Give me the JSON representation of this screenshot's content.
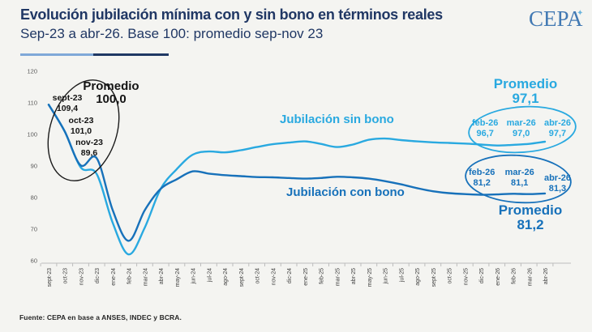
{
  "header": {
    "title": "Evolución jubilación mínima con y sin bono en términos reales",
    "subtitle": "Sep-23 a abr-26. Base 100: promedio sep-nov 23",
    "logo": "CEPA"
  },
  "source": "Fuente: CEPA en base a ANSES, INDEC y BCRA.",
  "colors": {
    "title_navy": "#203764",
    "sin_bono_line": "#29a9e0",
    "con_bono_line": "#1771ba",
    "base_annotation": "#141414",
    "axis": "#bdbdbd",
    "background": "#f4f4f1"
  },
  "series_labels": {
    "sin_bono": "Jubilación sin bono",
    "con_bono": "Jubilación con bono"
  },
  "annotations": {
    "base": {
      "promedio_label": "Promedio",
      "promedio_value": "100,0",
      "points": [
        {
          "label": "sept-23",
          "value": "109,4"
        },
        {
          "label": "oct-23",
          "value": "101,0"
        },
        {
          "label": "nov-23",
          "value": "89,6"
        }
      ]
    },
    "sin_bono": {
      "promedio_label": "Promedio",
      "promedio_value": "97,1",
      "cols": [
        {
          "month": "feb-26",
          "value": "96,7"
        },
        {
          "month": "mar-26",
          "value": "97,0"
        },
        {
          "month": "abr-26",
          "value": "97,7"
        }
      ]
    },
    "con_bono": {
      "promedio_label": "Promedio",
      "promedio_value": "81,2",
      "cols": [
        {
          "month": "feb-26",
          "value": "81,2"
        },
        {
          "month": "mar-26",
          "value": "81,1"
        },
        {
          "month": "abr-26",
          "value": "81,3"
        }
      ]
    }
  },
  "chart_data": {
    "type": "line",
    "title": "Evolución jubilación mínima con y sin bono en términos reales",
    "xlabel": "",
    "ylabel": "",
    "ylim": [
      60,
      120
    ],
    "yticks": [
      60,
      70,
      80,
      90,
      100,
      110,
      120
    ],
    "grid": false,
    "legend_position": "inline-labels",
    "categories": [
      "sept-23",
      "oct-23",
      "nov-23",
      "dic-23",
      "ene-24",
      "feb-24",
      "mar-24",
      "abr-24",
      "may-24",
      "jun-24",
      "jul-24",
      "ago-24",
      "sept-24",
      "oct-24",
      "nov-24",
      "dic-24",
      "ene-25",
      "feb-25",
      "mar-25",
      "abr-25",
      "may-25",
      "jun-25",
      "jul-25",
      "ago-25",
      "sept-25",
      "oct-25",
      "nov-25",
      "dic-25",
      "ene-26",
      "feb-26",
      "mar-26",
      "abr-26"
    ],
    "series": [
      {
        "name": "Jubilación sin bono",
        "color": "#29a9e0",
        "values": [
          109.4,
          101.0,
          89.6,
          87.5,
          72.0,
          62.0,
          70.5,
          82.8,
          89.0,
          93.6,
          94.6,
          94.3,
          95.0,
          96.0,
          96.9,
          97.4,
          97.8,
          97.0,
          96.0,
          96.8,
          98.3,
          98.7,
          98.2,
          97.8,
          97.5,
          97.3,
          97.1,
          96.8,
          96.5,
          96.7,
          97.0,
          97.7
        ]
      },
      {
        "name": "Jubilación con bono",
        "color": "#1771ba",
        "values": [
          109.4,
          101.0,
          90.2,
          92.5,
          76.0,
          66.3,
          76.0,
          82.8,
          85.8,
          88.3,
          87.6,
          87.1,
          86.8,
          86.5,
          86.4,
          86.2,
          86.0,
          86.2,
          86.6,
          86.4,
          86.0,
          85.2,
          84.2,
          83.0,
          82.0,
          81.4,
          81.1,
          80.9,
          81.0,
          81.2,
          81.1,
          81.3
        ]
      }
    ]
  }
}
